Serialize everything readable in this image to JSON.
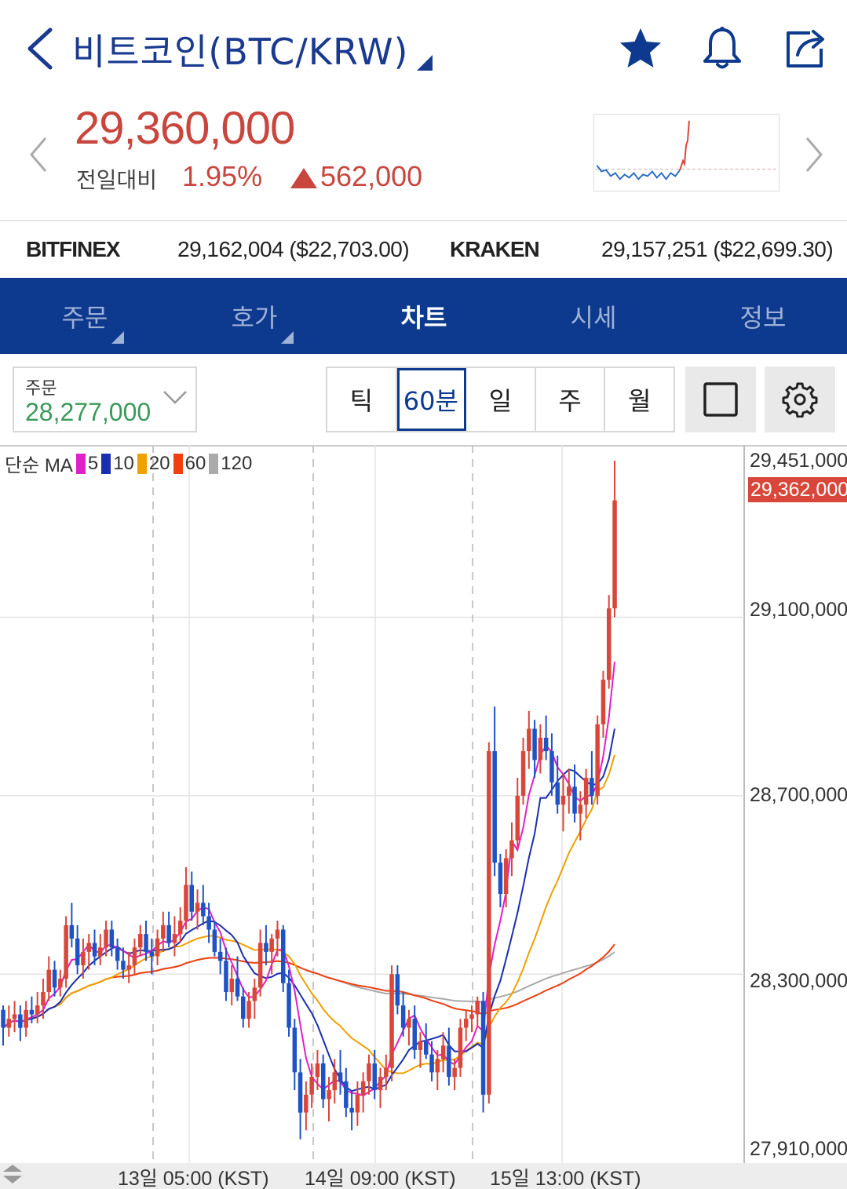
{
  "header": {
    "title": "비트코인(BTC/KRW)",
    "icons": [
      "chevron-left-icon",
      "star-icon",
      "bell-icon",
      "share-icon"
    ]
  },
  "price": {
    "current": "29,360,000",
    "compare_label": "전일대비",
    "change_pct": "1.95%",
    "change_amount": "562,000",
    "color_up": "#c9463e"
  },
  "exchanges": [
    {
      "name": "BITFINEX",
      "value": "29,162,004 ($22,703.00)"
    },
    {
      "name": "KRAKEN",
      "value": "29,157,251 ($22,699.30)"
    }
  ],
  "tabs": [
    {
      "label": "주문",
      "active": false,
      "dropdown": true
    },
    {
      "label": "호가",
      "active": false,
      "dropdown": true
    },
    {
      "label": "차트",
      "active": true,
      "dropdown": false
    },
    {
      "label": "시세",
      "active": false,
      "dropdown": false
    },
    {
      "label": "정보",
      "active": false,
      "dropdown": false
    }
  ],
  "order": {
    "label": "주문",
    "value": "28,277,000"
  },
  "periods": [
    {
      "label": "틱",
      "active": false
    },
    {
      "label": "60분",
      "active": true
    },
    {
      "label": "일",
      "active": false
    },
    {
      "label": "주",
      "active": false
    },
    {
      "label": "월",
      "active": false
    }
  ],
  "chart": {
    "legend": {
      "prefix": "단순 MA",
      "items": [
        {
          "label": "5",
          "color": "#e020c8"
        },
        {
          "label": "10",
          "color": "#1a2fb0"
        },
        {
          "label": "20",
          "color": "#f0a000"
        },
        {
          "label": "60",
          "color": "#f04010"
        },
        {
          "label": "120",
          "color": "#aaaaaa"
        }
      ]
    },
    "y_labels": [
      "29,451,000",
      "29,100,000",
      "28,700,000",
      "28,300,000",
      "27,910,000"
    ],
    "current_price_label": "29,362,000",
    "x_labels": [
      "13일 05:00 (KST)",
      "14일 09:00 (KST)",
      "15일 13:00 (KST)"
    ],
    "colors": {
      "up": "#d9463a",
      "down": "#1f52c4"
    }
  },
  "chart_data": {
    "type": "candlestick",
    "ylim": [
      27910000,
      29451000
    ],
    "candles_ohlc": [
      [
        28220000,
        28230000,
        28140000,
        28180000
      ],
      [
        28180000,
        28230000,
        28160000,
        28200000
      ],
      [
        28200000,
        28240000,
        28170000,
        28210000
      ],
      [
        28210000,
        28230000,
        28150000,
        28180000
      ],
      [
        28180000,
        28240000,
        28160000,
        28220000
      ],
      [
        28220000,
        28250000,
        28190000,
        28210000
      ],
      [
        28210000,
        28260000,
        28190000,
        28230000
      ],
      [
        28230000,
        28290000,
        28200000,
        28260000
      ],
      [
        28260000,
        28340000,
        28240000,
        28310000
      ],
      [
        28310000,
        28330000,
        28250000,
        28270000
      ],
      [
        28270000,
        28310000,
        28250000,
        28290000
      ],
      [
        28290000,
        28430000,
        28270000,
        28410000
      ],
      [
        28410000,
        28460000,
        28360000,
        28380000
      ],
      [
        28380000,
        28410000,
        28300000,
        28320000
      ],
      [
        28320000,
        28380000,
        28290000,
        28350000
      ],
      [
        28350000,
        28390000,
        28310000,
        28370000
      ],
      [
        28370000,
        28400000,
        28320000,
        28340000
      ],
      [
        28340000,
        28390000,
        28320000,
        28360000
      ],
      [
        28360000,
        28420000,
        28340000,
        28400000
      ],
      [
        28400000,
        28420000,
        28340000,
        28360000
      ],
      [
        28360000,
        28380000,
        28310000,
        28330000
      ],
      [
        28330000,
        28360000,
        28290000,
        28310000
      ],
      [
        28310000,
        28350000,
        28280000,
        28320000
      ],
      [
        28320000,
        28380000,
        28300000,
        28360000
      ],
      [
        28360000,
        28410000,
        28340000,
        28390000
      ],
      [
        28390000,
        28420000,
        28330000,
        28350000
      ],
      [
        28350000,
        28380000,
        28300000,
        28340000
      ],
      [
        28340000,
        28400000,
        28320000,
        28380000
      ],
      [
        28380000,
        28440000,
        28350000,
        28410000
      ],
      [
        28410000,
        28440000,
        28360000,
        28370000
      ],
      [
        28370000,
        28430000,
        28340000,
        28390000
      ],
      [
        28390000,
        28450000,
        28370000,
        28420000
      ],
      [
        28420000,
        28540000,
        28400000,
        28500000
      ],
      [
        28500000,
        28530000,
        28420000,
        28440000
      ],
      [
        28440000,
        28490000,
        28400000,
        28460000
      ],
      [
        28460000,
        28500000,
        28410000,
        28430000
      ],
      [
        28430000,
        28460000,
        28370000,
        28400000
      ],
      [
        28400000,
        28420000,
        28340000,
        28350000
      ],
      [
        28350000,
        28380000,
        28300000,
        28330000
      ],
      [
        28330000,
        28360000,
        28240000,
        28260000
      ],
      [
        28260000,
        28320000,
        28230000,
        28290000
      ],
      [
        28290000,
        28340000,
        28240000,
        28250000
      ],
      [
        28250000,
        28270000,
        28180000,
        28200000
      ],
      [
        28200000,
        28260000,
        28180000,
        28240000
      ],
      [
        28240000,
        28290000,
        28200000,
        28270000
      ],
      [
        28270000,
        28400000,
        28250000,
        28370000
      ],
      [
        28370000,
        28410000,
        28320000,
        28350000
      ],
      [
        28350000,
        28390000,
        28300000,
        28380000
      ],
      [
        28380000,
        28420000,
        28340000,
        28400000
      ],
      [
        28400000,
        28410000,
        28260000,
        28280000
      ],
      [
        28280000,
        28310000,
        28160000,
        28180000
      ],
      [
        28180000,
        28200000,
        28040000,
        28080000
      ],
      [
        28080000,
        28110000,
        27930000,
        27990000
      ],
      [
        27990000,
        28060000,
        27950000,
        28030000
      ],
      [
        28030000,
        28100000,
        28000000,
        28070000
      ],
      [
        28070000,
        28130000,
        28040000,
        28100000
      ],
      [
        28100000,
        28120000,
        28000000,
        28020000
      ],
      [
        28020000,
        28070000,
        27970000,
        28040000
      ],
      [
        28040000,
        28110000,
        28010000,
        28080000
      ],
      [
        28080000,
        28130000,
        28030000,
        28060000
      ],
      [
        28060000,
        28090000,
        27980000,
        28000000
      ],
      [
        28000000,
        28040000,
        27950000,
        27990000
      ],
      [
        27990000,
        28060000,
        27960000,
        28030000
      ],
      [
        28030000,
        28080000,
        27990000,
        28060000
      ],
      [
        28060000,
        28120000,
        28030000,
        28100000
      ],
      [
        28100000,
        28130000,
        28020000,
        28040000
      ],
      [
        28040000,
        28090000,
        28000000,
        28070000
      ],
      [
        28070000,
        28120000,
        28040000,
        28090000
      ],
      [
        28090000,
        28320000,
        28060000,
        28300000
      ],
      [
        28300000,
        28320000,
        28210000,
        28230000
      ],
      [
        28230000,
        28260000,
        28160000,
        28180000
      ],
      [
        28180000,
        28220000,
        28140000,
        28200000
      ],
      [
        28200000,
        28230000,
        28110000,
        28130000
      ],
      [
        28130000,
        28170000,
        28090000,
        28150000
      ],
      [
        28150000,
        28190000,
        28110000,
        28120000
      ],
      [
        28120000,
        28150000,
        28060000,
        28080000
      ],
      [
        28080000,
        28130000,
        28040000,
        28110000
      ],
      [
        28110000,
        28170000,
        28080000,
        28140000
      ],
      [
        28140000,
        28180000,
        28050000,
        28070000
      ],
      [
        28070000,
        28110000,
        28040000,
        28090000
      ],
      [
        28090000,
        28200000,
        28070000,
        28180000
      ],
      [
        28180000,
        28220000,
        28150000,
        28200000
      ],
      [
        28200000,
        28230000,
        28170000,
        28210000
      ],
      [
        28210000,
        28250000,
        28180000,
        28240000
      ],
      [
        28240000,
        28260000,
        27990000,
        28030000
      ],
      [
        28030000,
        28820000,
        28010000,
        28800000
      ],
      [
        28800000,
        28900000,
        28520000,
        28550000
      ],
      [
        28550000,
        28570000,
        28450000,
        28480000
      ],
      [
        28480000,
        28580000,
        28450000,
        28560000
      ],
      [
        28560000,
        28640000,
        28520000,
        28600000
      ],
      [
        28600000,
        28740000,
        28580000,
        28700000
      ],
      [
        28700000,
        28830000,
        28680000,
        28800000
      ],
      [
        28800000,
        28890000,
        28760000,
        28850000
      ],
      [
        28850000,
        28870000,
        28740000,
        28780000
      ],
      [
        28780000,
        28860000,
        28750000,
        28830000
      ],
      [
        28830000,
        28880000,
        28780000,
        28800000
      ],
      [
        28800000,
        28840000,
        28700000,
        28730000
      ],
      [
        28730000,
        28790000,
        28660000,
        28680000
      ],
      [
        28680000,
        28750000,
        28620000,
        28700000
      ],
      [
        28700000,
        28760000,
        28660000,
        28720000
      ],
      [
        28720000,
        28770000,
        28640000,
        28660000
      ],
      [
        28660000,
        28710000,
        28600000,
        28680000
      ],
      [
        28680000,
        28760000,
        28650000,
        28740000
      ],
      [
        28740000,
        28800000,
        28680000,
        28700000
      ],
      [
        28700000,
        28880000,
        28680000,
        28860000
      ],
      [
        28860000,
        28980000,
        28830000,
        28960000
      ],
      [
        28960000,
        29150000,
        28940000,
        29120000
      ],
      [
        29120000,
        29451000,
        29100000,
        29362000
      ]
    ]
  }
}
